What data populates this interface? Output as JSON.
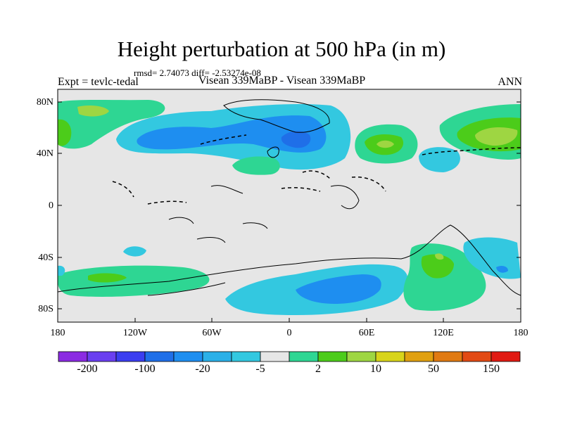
{
  "header": {
    "title": "Height perturbation at 500 hPa (in m)",
    "stats": "rmsd= 2.74073  diff= -2.53274e-08",
    "expt": "Expt = tevlc-tedal",
    "cases": "Visean 339MaBP - Visean 339MaBP",
    "season": "ANN"
  },
  "map": {
    "lat_labels": [
      "80N",
      "40N",
      "0",
      "40S",
      "80S"
    ],
    "lon_labels": [
      "180",
      "120W",
      "60W",
      "0",
      "60E",
      "120E",
      "180"
    ],
    "background_color": "#e6e6e6"
  },
  "colorbar": {
    "colors": [
      "#8b2be2",
      "#6a3ff0",
      "#3b3ef0",
      "#1f6fe8",
      "#1e8ef0",
      "#2bb0e8",
      "#33c8e0",
      "#e6e6e6",
      "#2ed693",
      "#4ccc1a",
      "#9ed642",
      "#d8d41a",
      "#e0a010",
      "#e07a12",
      "#e24a14",
      "#e11a12"
    ],
    "labels": [
      "-200",
      "-100",
      "-20",
      "-5",
      "2",
      "10",
      "50",
      "150"
    ]
  }
}
